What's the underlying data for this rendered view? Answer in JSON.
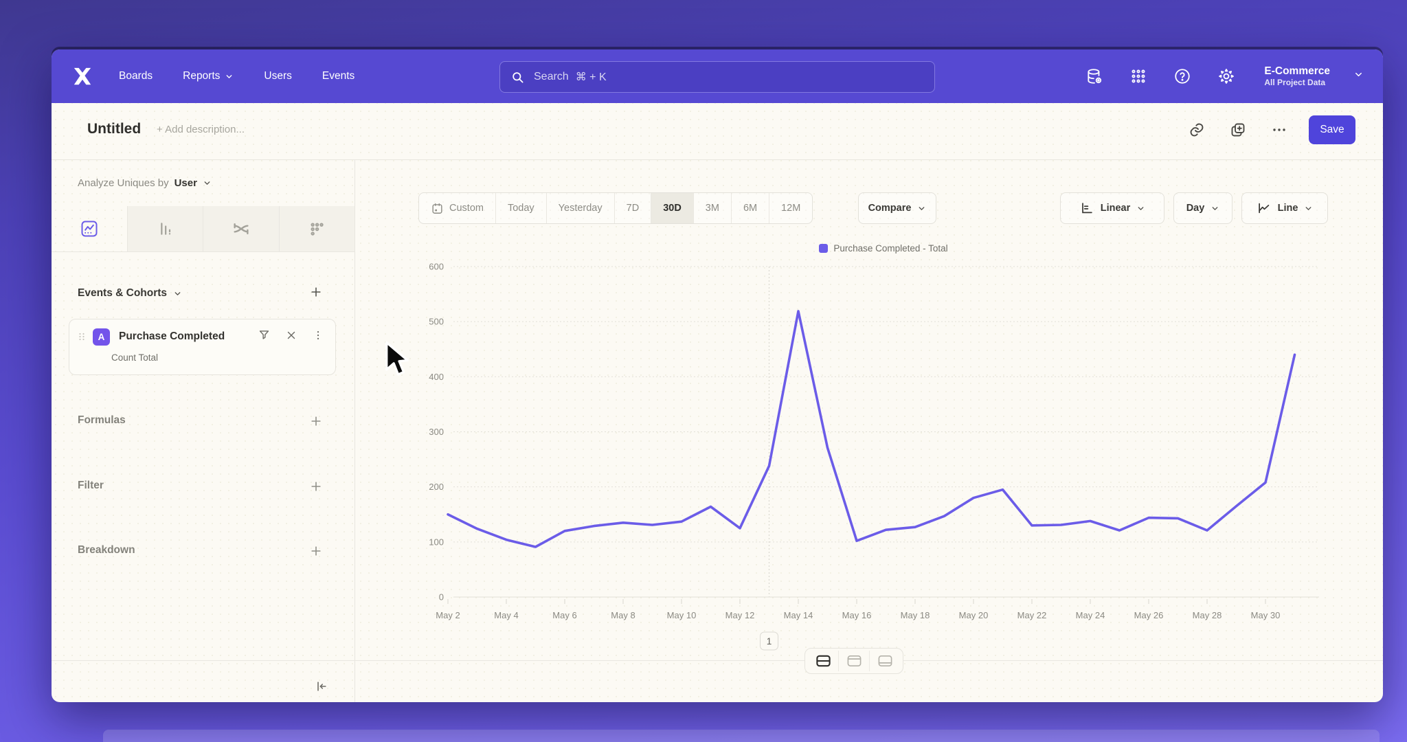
{
  "nav": {
    "items": [
      {
        "label": "Boards",
        "chevron": false
      },
      {
        "label": "Reports",
        "chevron": true
      },
      {
        "label": "Users",
        "chevron": false
      },
      {
        "label": "Events",
        "chevron": false
      }
    ],
    "search": {
      "placeholder": "Search",
      "shortcut": "⌘ + K"
    },
    "project": {
      "name": "E-Commerce",
      "scope": "All Project Data"
    }
  },
  "header": {
    "title": "Untitled",
    "description_placeholder": "+ Add description...",
    "save_label": "Save"
  },
  "sidebar": {
    "analyze_prefix": "Analyze Uniques by",
    "analyze_value": "User",
    "events_header": "Events & Cohorts",
    "event_card": {
      "badge": "A",
      "title": "Purchase Completed",
      "subtitle": "Count Total"
    },
    "sections": [
      {
        "label": "Formulas"
      },
      {
        "label": "Filter"
      },
      {
        "label": "Breakdown"
      }
    ]
  },
  "toolbar": {
    "date_ranges": [
      "Custom",
      "Today",
      "Yesterday",
      "7D",
      "30D",
      "3M",
      "6M",
      "12M"
    ],
    "active_range": "30D",
    "compare_label": "Compare",
    "scale_label": "Linear",
    "interval_label": "Day",
    "chart_type_label": "Line"
  },
  "chart_data": {
    "type": "line",
    "title": "",
    "legend_position": "top",
    "grid": "dashed-horizontal",
    "series": [
      {
        "name": "Purchase Completed - Total",
        "color": "#6B5CE8",
        "values": [
          150,
          124,
          104,
          91,
          120,
          129,
          135,
          131,
          137,
          164,
          125,
          238,
          519,
          271,
          102,
          122,
          127,
          147,
          180,
          195,
          130,
          131,
          138,
          121,
          144,
          143,
          121,
          165,
          208,
          440
        ]
      }
    ],
    "x": [
      "May 2",
      "May 3",
      "May 4",
      "May 5",
      "May 6",
      "May 7",
      "May 8",
      "May 9",
      "May 10",
      "May 11",
      "May 12",
      "May 13",
      "May 14",
      "May 15",
      "May 16",
      "May 17",
      "May 18",
      "May 19",
      "May 20",
      "May 21",
      "May 22",
      "May 23",
      "May 24",
      "May 25",
      "May 26",
      "May 27",
      "May 28",
      "May 29",
      "May 30",
      "May 31"
    ],
    "x_tick_labels": [
      "May 2",
      "May 4",
      "May 6",
      "May 8",
      "May 10",
      "May 12",
      "May 14",
      "May 16",
      "May 18",
      "May 20",
      "May 22",
      "May 24",
      "May 26",
      "May 28",
      "May 30"
    ],
    "ylim": [
      0,
      600
    ],
    "yticks": [
      0,
      100,
      200,
      300,
      400,
      500,
      600
    ],
    "annotation": {
      "label": "1",
      "x": "May 13"
    }
  },
  "footer": {
    "view_toggles": [
      {
        "name": "split-view",
        "active": true
      },
      {
        "name": "top-panel-view",
        "active": false
      },
      {
        "name": "bottom-panel-view",
        "active": false
      }
    ]
  }
}
